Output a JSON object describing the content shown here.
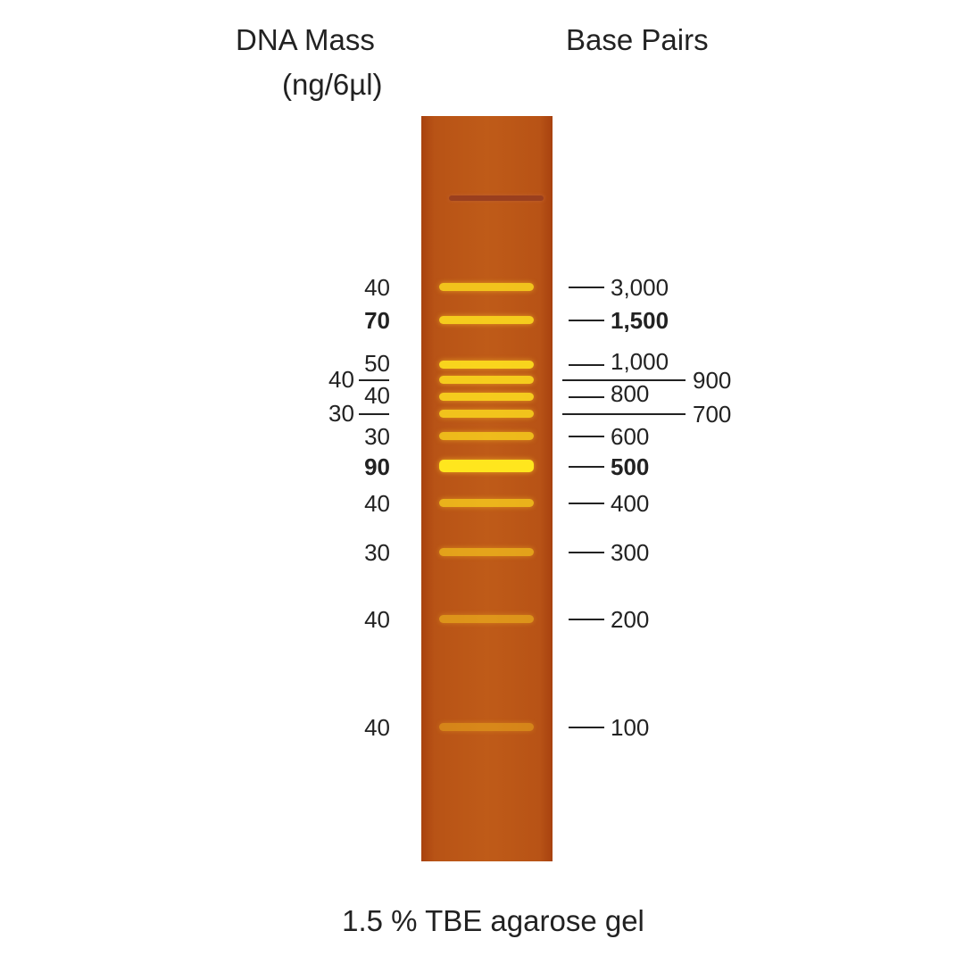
{
  "header": {
    "mass_title": "DNA Mass",
    "mass_unit": "(ng/6µl)",
    "bp_title": "Base Pairs"
  },
  "footer": "1.5 % TBE agarose gel",
  "colors": {
    "gel": "#bf5b18",
    "band": "#ffd21a"
  },
  "bands": [
    {
      "bp": "3,000",
      "mass": "40",
      "bold": false
    },
    {
      "bp": "1,500",
      "mass": "70",
      "bold": true
    },
    {
      "bp": "1,000",
      "mass": "50",
      "bold": false
    },
    {
      "bp": "900",
      "mass": "40",
      "bold": false
    },
    {
      "bp": "800",
      "mass": "40",
      "bold": false
    },
    {
      "bp": "700",
      "mass": "30",
      "bold": false
    },
    {
      "bp": "600",
      "mass": "30",
      "bold": false
    },
    {
      "bp": "500",
      "mass": "90",
      "bold": true
    },
    {
      "bp": "400",
      "mass": "40",
      "bold": false
    },
    {
      "bp": "300",
      "mass": "30",
      "bold": false
    },
    {
      "bp": "200",
      "mass": "40",
      "bold": false
    },
    {
      "bp": "100",
      "mass": "40",
      "bold": false
    }
  ]
}
